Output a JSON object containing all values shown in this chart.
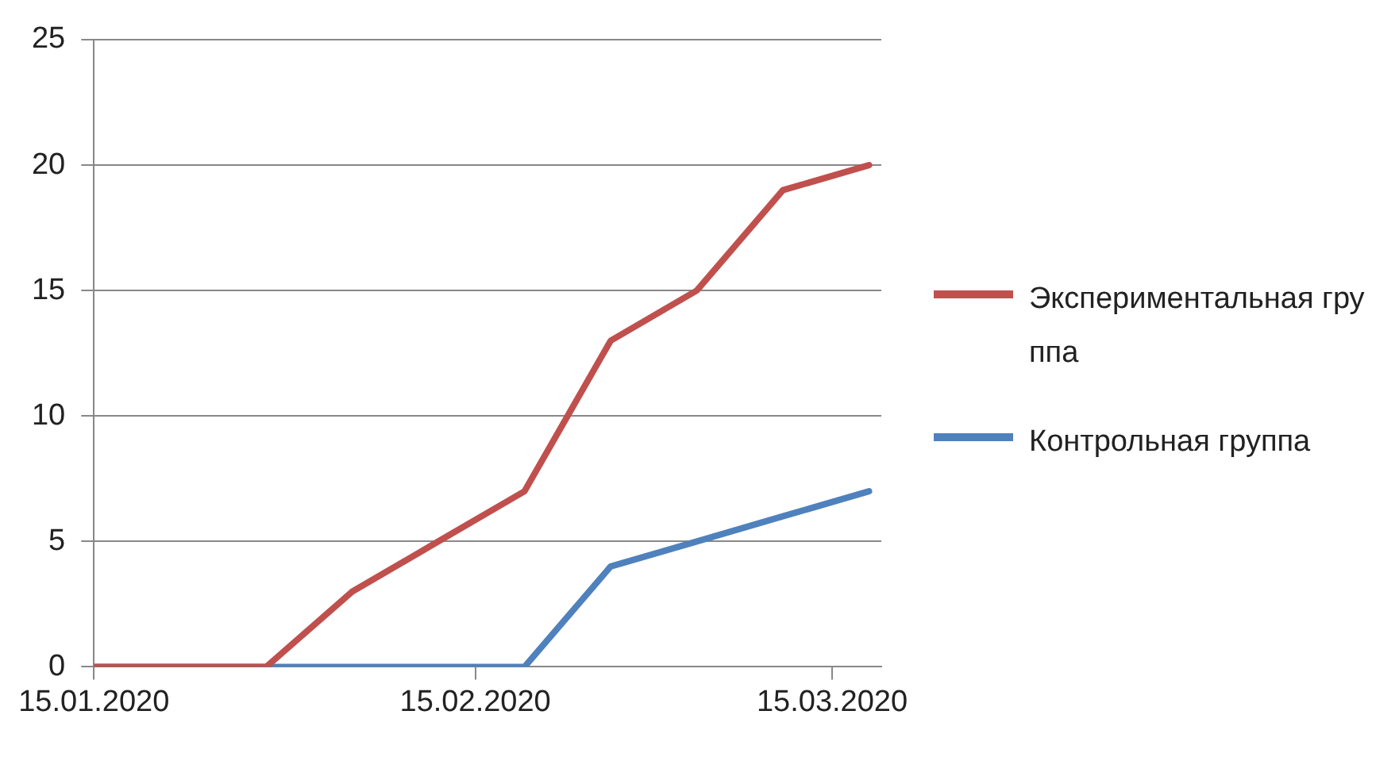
{
  "chart_data": {
    "type": "line",
    "x": [
      "2020-01-15",
      "2020-01-22",
      "2020-01-29",
      "2020-02-05",
      "2020-02-12",
      "2020-02-19",
      "2020-02-26",
      "2020-03-04",
      "2020-03-11",
      "2020-03-18"
    ],
    "series": [
      {
        "name": "Экспериментальная группа",
        "color": "#c0504d",
        "values": [
          0,
          0,
          0,
          3,
          5,
          7,
          13,
          15,
          19,
          20
        ]
      },
      {
        "name": "Контрольная группа",
        "color": "#4f81bd",
        "values": [
          0,
          0,
          0,
          0,
          0,
          0,
          4,
          5,
          6,
          7
        ]
      }
    ],
    "xlim": [
      "2020-01-15",
      "2020-03-19"
    ],
    "xticks": [
      {
        "value": "2020-01-15",
        "label": "15.01.2020"
      },
      {
        "value": "2020-02-15",
        "label": "15.02.2020"
      },
      {
        "value": "2020-03-15",
        "label": "15.03.2020"
      }
    ],
    "ylim": [
      0,
      25
    ],
    "yticks": [
      0,
      5,
      10,
      15,
      20,
      25
    ],
    "grid": "y",
    "legend": "right",
    "marker": "none",
    "line_style": "solid"
  }
}
